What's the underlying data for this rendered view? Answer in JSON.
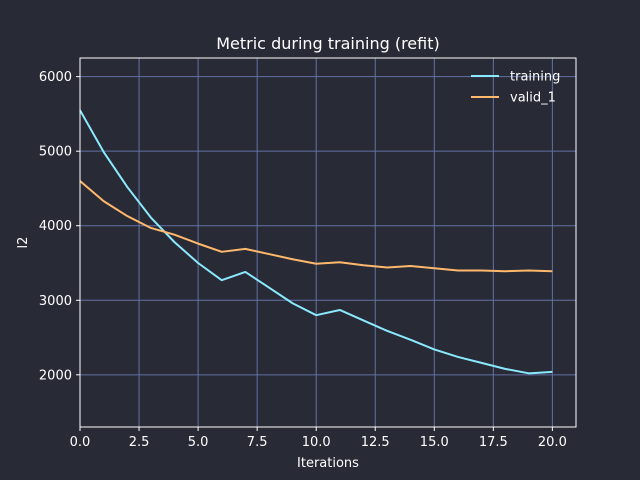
{
  "chart_data": {
    "type": "line",
    "title": "Metric during training (refit)",
    "xlabel": "Iterations",
    "ylabel": "l2",
    "xlim": [
      0,
      21
    ],
    "ylim": [
      1300,
      6250
    ],
    "xticks": [
      0,
      2.5,
      5,
      7.5,
      10,
      12.5,
      15,
      17.5,
      20
    ],
    "xtick_labels": [
      "0.0",
      "2.5",
      "5.0",
      "7.5",
      "10.0",
      "12.5",
      "15.0",
      "17.5",
      "20.0"
    ],
    "yticks": [
      2000,
      3000,
      4000,
      5000,
      6000
    ],
    "ytick_labels": [
      "2000",
      "3000",
      "4000",
      "5000",
      "6000"
    ],
    "grid": true,
    "legend_position": "top-right",
    "x": [
      0,
      1,
      2,
      3,
      4,
      5,
      6,
      7,
      8,
      9,
      10,
      11,
      12,
      13,
      14,
      15,
      16,
      17,
      18,
      19,
      20
    ],
    "series": [
      {
        "name": "training",
        "color": "#8be9fd",
        "values": [
          5550,
          4990,
          4520,
          4110,
          3780,
          3500,
          3270,
          3380,
          3170,
          2960,
          2800,
          2870,
          2730,
          2590,
          2470,
          2340,
          2240,
          2160,
          2080,
          2020,
          2040
        ]
      },
      {
        "name": "valid_1",
        "color": "#ffb86c",
        "values": [
          4600,
          4330,
          4130,
          3970,
          3880,
          3760,
          3650,
          3690,
          3620,
          3550,
          3490,
          3510,
          3470,
          3440,
          3460,
          3430,
          3400,
          3400,
          3390,
          3400,
          3390
        ]
      }
    ]
  },
  "colors": {
    "background": "#282a36",
    "grid": "#6272a4",
    "text": "#ffffff"
  }
}
